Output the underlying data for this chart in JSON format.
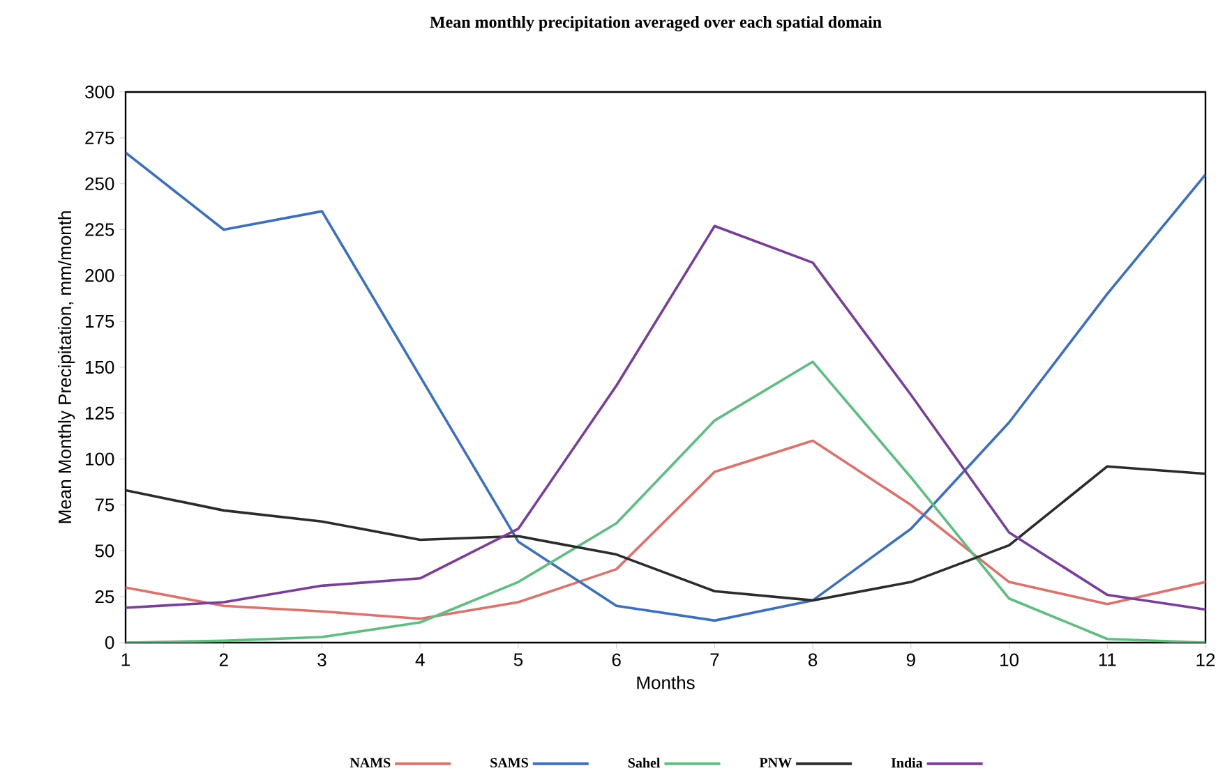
{
  "chart_data": {
    "type": "line",
    "title": "Mean monthly precipitation averaged over each spatial domain",
    "xlabel": "Months",
    "ylabel": "Mean Monthly Precipitation, mm/month",
    "x": [
      1,
      2,
      3,
      4,
      5,
      6,
      7,
      8,
      9,
      10,
      11,
      12
    ],
    "series": [
      {
        "name": "NAMS",
        "color": "#e0706a",
        "values": [
          30,
          20,
          17,
          13,
          22,
          40,
          93,
          110,
          75,
          33,
          21,
          33
        ]
      },
      {
        "name": "SAMS",
        "color": "#3a6fc4",
        "values": [
          267,
          225,
          235,
          145,
          55,
          20,
          12,
          23,
          62,
          120,
          190,
          255
        ]
      },
      {
        "name": "Sahel",
        "color": "#5cbf7f",
        "values": [
          0,
          1,
          3,
          11,
          33,
          65,
          121,
          153,
          90,
          24,
          2,
          0
        ]
      },
      {
        "name": "PNW",
        "color": "#2b2b2b",
        "values": [
          83,
          72,
          66,
          56,
          58,
          48,
          28,
          23,
          33,
          53,
          96,
          92
        ]
      },
      {
        "name": "India",
        "color": "#7a3d9c",
        "values": [
          19,
          22,
          31,
          35,
          62,
          140,
          227,
          207,
          135,
          60,
          26,
          18
        ]
      }
    ],
    "xlim": [
      1,
      12
    ],
    "xticks": [
      1,
      2,
      3,
      4,
      5,
      6,
      7,
      8,
      9,
      10,
      11,
      12
    ],
    "ylim": [
      0,
      300
    ],
    "yticks": [
      0,
      25,
      50,
      75,
      100,
      125,
      150,
      175,
      200,
      225,
      250,
      275,
      300
    ],
    "grid": false,
    "legend": "bottom",
    "marker": "none",
    "line_style": "solid"
  }
}
